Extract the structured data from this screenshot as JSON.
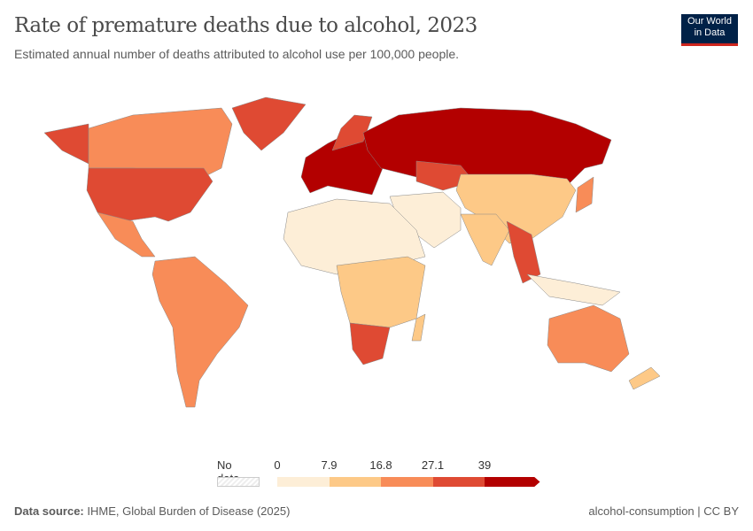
{
  "header": {
    "title": "Rate of premature deaths due to alcohol, 2023",
    "subtitle": "Estimated annual number of deaths attributed to alcohol use per 100,000 people.",
    "logo_text": "Our World in Data"
  },
  "legend": {
    "no_data_label": "No data",
    "ticks": [
      "0",
      "7.9",
      "16.8",
      "27.1",
      "39"
    ],
    "colors": [
      "#fdeed7",
      "#fdc987",
      "#f88c58",
      "#df4a33",
      "#b30000"
    ]
  },
  "footer": {
    "source_label": "Data source:",
    "source": "IHME, Global Burden of Disease (2025)",
    "license": "alcohol-consumption | CC BY"
  }
}
